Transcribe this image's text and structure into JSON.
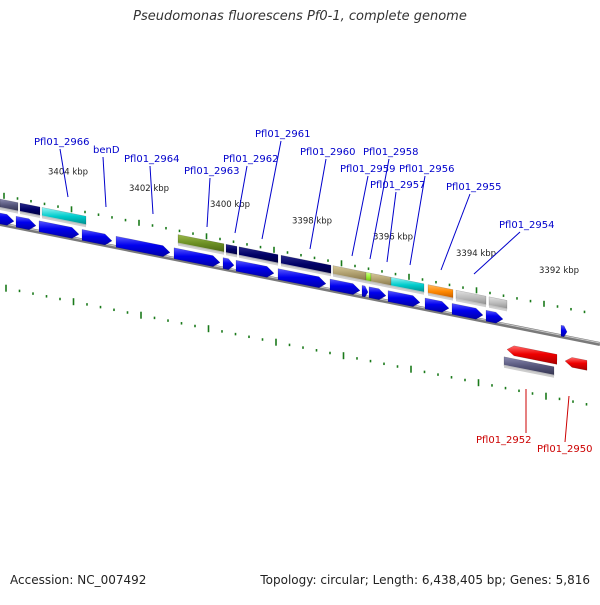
{
  "title": "Pseudomonas fluorescens Pf0-1, complete genome",
  "footer": {
    "accession": "Accession: NC_007492",
    "topology": "Topology: circular; Length: 6,438,405 bp; Genes: 5,816"
  },
  "kbp_labels": [
    "3404 kbp",
    "3402 kbp",
    "3400 kbp",
    "3398 kbp",
    "3396 kbp",
    "3394 kbp",
    "3392 kbp"
  ],
  "gene_labels": [
    {
      "text": "Pfl01_2966",
      "color": "#0000cc"
    },
    {
      "text": "benD",
      "color": "#0000cc"
    },
    {
      "text": "Pfl01_2964",
      "color": "#0000cc"
    },
    {
      "text": "Pfl01_2963",
      "color": "#0000cc"
    },
    {
      "text": "Pfl01_2962",
      "color": "#0000cc"
    },
    {
      "text": "Pfl01_2961",
      "color": "#0000cc"
    },
    {
      "text": "Pfl01_2960",
      "color": "#0000cc"
    },
    {
      "text": "Pfl01_2959",
      "color": "#0000cc"
    },
    {
      "text": "Pfl01_2958",
      "color": "#0000cc"
    },
    {
      "text": "Pfl01_2957",
      "color": "#0000cc"
    },
    {
      "text": "Pfl01_2956",
      "color": "#0000cc"
    },
    {
      "text": "Pfl01_2955",
      "color": "#0000cc"
    },
    {
      "text": "Pfl01_2954",
      "color": "#0000cc"
    },
    {
      "text": "Pfl01_2952",
      "color": "#cc0000"
    },
    {
      "text": "Pfl01_2950",
      "color": "#cc0000"
    }
  ],
  "colors": {
    "forward_cds": "#0000ee",
    "reverse_cds": "#ee0000",
    "backbone": "#888888",
    "tick": "#1a7a1a",
    "cog_dark_navy": "#000066",
    "cog_cyan": "#00cccc",
    "cog_olive": "#6b8e23",
    "cog_khaki": "#b0a070",
    "cog_lime": "#99ee33",
    "cog_orange": "#ff8800",
    "cog_grey": "#bbbbbb",
    "cog_slate": "#55557a"
  }
}
